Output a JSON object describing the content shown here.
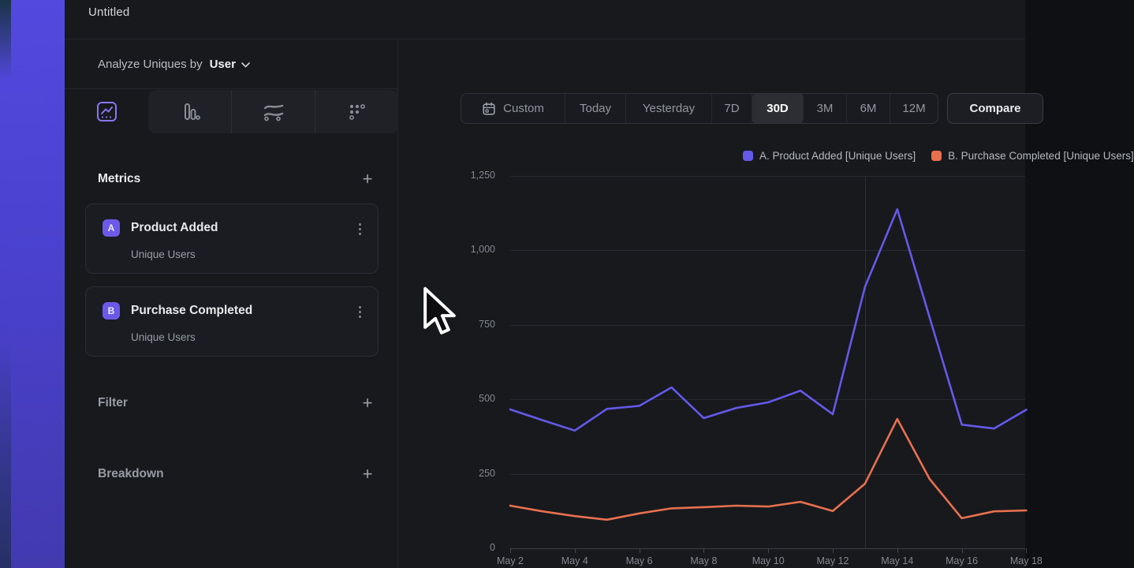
{
  "window": {
    "title": "Untitled"
  },
  "panel": {
    "analyze_label": "Analyze Uniques by",
    "analyze_value": "User",
    "tabs": [
      {
        "icon": "line-chart-icon",
        "selected": true
      },
      {
        "icon": "bar-chart-icon",
        "selected": false
      },
      {
        "icon": "flow-chart-icon",
        "selected": false
      },
      {
        "icon": "grid-chart-icon",
        "selected": false
      }
    ],
    "metrics": {
      "header": "Metrics",
      "add_label": "+",
      "items": [
        {
          "badge": "A",
          "title": "Product Added",
          "subtitle": "Unique Users"
        },
        {
          "badge": "B",
          "title": "Purchase Completed",
          "subtitle": "Unique Users"
        }
      ]
    },
    "filter": {
      "label": "Filter",
      "add_label": "+"
    },
    "breakdown": {
      "label": "Breakdown",
      "add_label": "+"
    }
  },
  "toolbar": {
    "ranges": [
      "Custom",
      "Today",
      "Yesterday",
      "7D",
      "30D",
      "3M",
      "6M",
      "12M"
    ],
    "selected_range": "30D",
    "compare_label": "Compare"
  },
  "chart_data": {
    "type": "line",
    "x": [
      "May 2",
      "May 3",
      "May 4",
      "May 5",
      "May 6",
      "May 7",
      "May 8",
      "May 9",
      "May 10",
      "May 11",
      "May 12",
      "May 13",
      "May 14",
      "May 15",
      "May 16",
      "May 17",
      "May 18"
    ],
    "x_label_step": 2,
    "series": [
      {
        "name": "A. Product Added [Unique Users]",
        "color": "#6459e8",
        "values": [
          466,
          430,
          395,
          468,
          478,
          540,
          437,
          471,
          490,
          529,
          450,
          878,
          1138,
          776,
          415,
          402,
          465
        ]
      },
      {
        "name": "B. Purchase Completed [Unique Users]",
        "color": "#e8704f",
        "values": [
          143,
          124,
          108,
          96,
          117,
          134,
          138,
          143,
          140,
          156,
          125,
          217,
          434,
          233,
          101,
          124,
          127
        ]
      }
    ],
    "ylim": [
      0,
      1250
    ],
    "yticks": [
      0,
      250,
      500,
      750,
      1000,
      1250
    ],
    "ytick_labels": [
      "0",
      "250",
      "500",
      "750",
      "1,000",
      "1,250"
    ],
    "vertical_gridline_at": "May 13",
    "grid": "horizontal",
    "legend_position": "top-right"
  },
  "accent": {
    "purple": "#6459e8",
    "orange": "#e8704f",
    "badge_purple": "#6c59e9"
  }
}
